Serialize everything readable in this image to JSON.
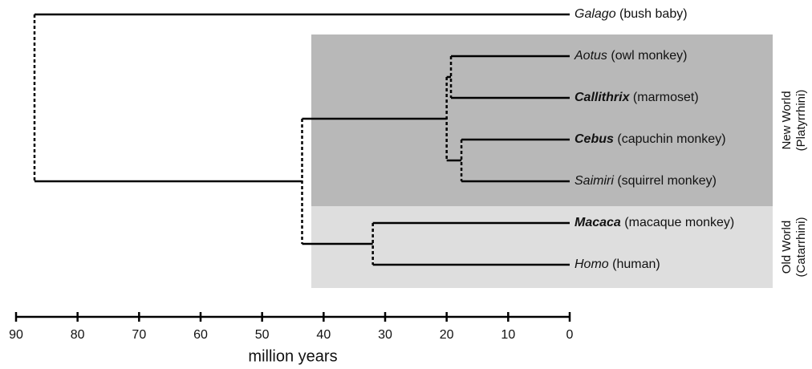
{
  "tree": {
    "age": 87,
    "children": [
      {
        "genus": "Galago",
        "common": "(bush baby)",
        "bold": false
      },
      {
        "age": 43.5,
        "children": [
          {
            "age": 20,
            "children": [
              {
                "age": 19.3,
                "children": [
                  {
                    "genus": "Aotus",
                    "common": "(owl monkey)",
                    "bold": false
                  },
                  {
                    "genus": "Callithrix",
                    "common": "(marmoset)",
                    "bold": true
                  }
                ]
              },
              {
                "age": 17.6,
                "children": [
                  {
                    "genus": "Cebus",
                    "common": "(capuchin monkey)",
                    "bold": true
                  },
                  {
                    "genus": "Saimiri",
                    "common": "(squirrel monkey)",
                    "bold": false
                  }
                ]
              }
            ]
          },
          {
            "age": 32,
            "children": [
              {
                "genus": "Macaca",
                "common": "(macaque monkey)",
                "bold": true
              },
              {
                "genus": "Homo",
                "common": "(human)",
                "bold": false
              }
            ]
          }
        ]
      }
    ]
  },
  "groups": [
    {
      "lines": [
        "New World",
        "(Platyrrhini)"
      ],
      "color": "#b8b8b8"
    },
    {
      "lines": [
        "Old World",
        "(Catarrhini)"
      ],
      "color": "#dedede"
    }
  ],
  "axis": {
    "label": "million years",
    "xlim": [
      90,
      0
    ],
    "xticks": [
      90,
      80,
      70,
      60,
      50,
      40,
      30,
      20,
      10,
      0
    ]
  }
}
